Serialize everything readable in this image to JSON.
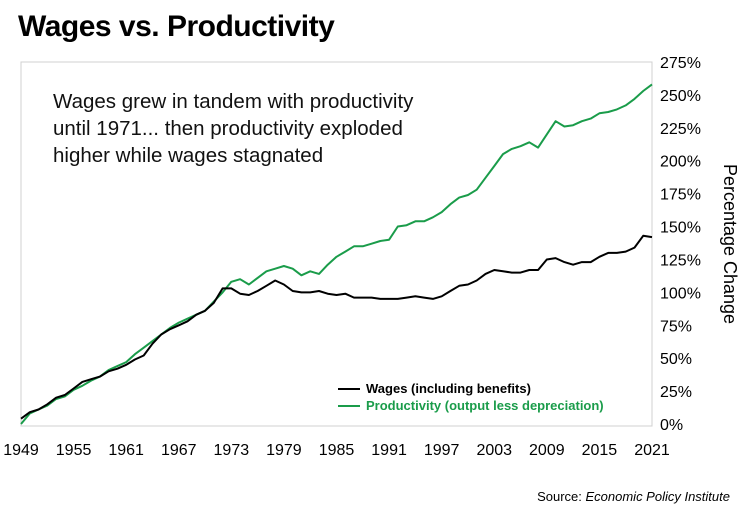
{
  "title": "Wages vs. Productivity",
  "annotation_lines": [
    "Wages grew in tandem with productivity",
    "until 1971... then productivity exploded",
    "higher while wages stagnated"
  ],
  "source_prefix": "Source: ",
  "source_name": "Economic Policy Institute",
  "chart_data": {
    "type": "line",
    "title": "Wages vs. Productivity",
    "xlabel": "",
    "ylabel": "Percentage Change",
    "xlim": [
      1949,
      2021
    ],
    "ylim": [
      0,
      275
    ],
    "x_ticks": [
      "1949",
      "1955",
      "1961",
      "1967",
      "1973",
      "1979",
      "1985",
      "1991",
      "1997",
      "2003",
      "2009",
      "2015",
      "2021"
    ],
    "y_ticks": [
      "0%",
      "25%",
      "50%",
      "75%",
      "100%",
      "125%",
      "150%",
      "175%",
      "200%",
      "225%",
      "250%",
      "275%"
    ],
    "grid": false,
    "legend_position": "bottom-right",
    "x_start": 1949,
    "series": [
      {
        "name": "Wages (including benefits)",
        "color": "#000000",
        "values": [
          4,
          9,
          11,
          15,
          20,
          22,
          27,
          32,
          34,
          36,
          40,
          42,
          45,
          49,
          52,
          61,
          68,
          72,
          75,
          78,
          83,
          86,
          92,
          103,
          103,
          99,
          98,
          101,
          105,
          109,
          106,
          101,
          100,
          100,
          101,
          99,
          98,
          99,
          96,
          96,
          96,
          95,
          95,
          95,
          96,
          97,
          96,
          95,
          97,
          101,
          105,
          106,
          109,
          114,
          117,
          116,
          115,
          115,
          117,
          117,
          125,
          126,
          123,
          121,
          123,
          123,
          127,
          130,
          130,
          131,
          134,
          143,
          142
        ]
      },
      {
        "name": "Productivity (output less depreciation)",
        "color": "#1a9c4a",
        "values": [
          0,
          8,
          11,
          14,
          19,
          21,
          26,
          29,
          33,
          36,
          41,
          44,
          47,
          53,
          58,
          63,
          68,
          73,
          77,
          80,
          83,
          86,
          93,
          100,
          108,
          110,
          106,
          111,
          116,
          118,
          120,
          118,
          113,
          116,
          114,
          121,
          127,
          131,
          135,
          135,
          137,
          139,
          140,
          150,
          151,
          154,
          154,
          157,
          161,
          167,
          172,
          174,
          178,
          187,
          196,
          205,
          209,
          211,
          214,
          210,
          220,
          230,
          226,
          227,
          230,
          232,
          236,
          237,
          239,
          242,
          247,
          253,
          258
        ]
      }
    ]
  }
}
